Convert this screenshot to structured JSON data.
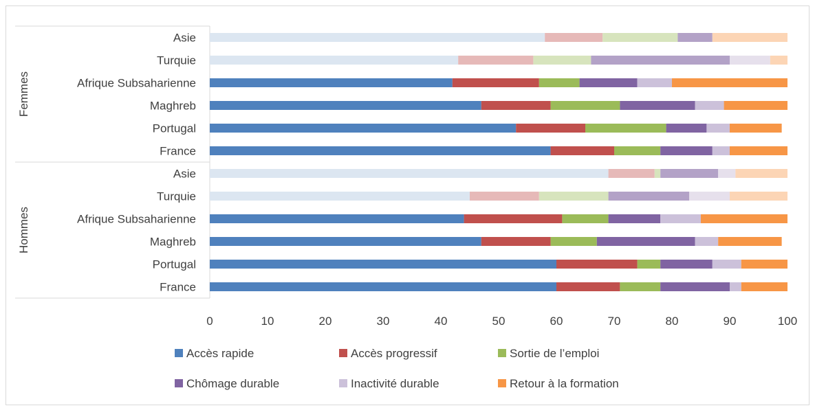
{
  "chart_data": {
    "type": "bar",
    "orientation": "horizontal",
    "stacked": true,
    "xlim": [
      0,
      100
    ],
    "xticks": [
      "0",
      "10",
      "20",
      "30",
      "40",
      "50",
      "60",
      "70",
      "80",
      "90",
      "100"
    ],
    "grid": false,
    "legend_position": "bottom",
    "groups": [
      {
        "name": "Femmes",
        "categories": [
          "Asie",
          "Turquie",
          "Afrique Subsaharienne",
          "Maghreb",
          "Portugal",
          "France"
        ],
        "faded": [
          true,
          true,
          false,
          false,
          false,
          false
        ]
      },
      {
        "name": "Hommes",
        "categories": [
          "Asie",
          "Turquie",
          "Afrique Subsaharienne",
          "Maghreb",
          "Portugal",
          "France"
        ],
        "faded": [
          true,
          true,
          false,
          false,
          false,
          false
        ]
      }
    ],
    "series": [
      {
        "name": "Accès rapide",
        "color": "#4f81bd",
        "faded_color": "#dce6f1",
        "values": [
          [
            58,
            43,
            42,
            47,
            53,
            59
          ],
          [
            69,
            45,
            44,
            47,
            60,
            60
          ]
        ]
      },
      {
        "name": "Accès progressif",
        "color": "#c0504d",
        "faded_color": "#e6b9b8",
        "values": [
          [
            10,
            13,
            15,
            12,
            12,
            11
          ],
          [
            8,
            12,
            17,
            12,
            14,
            11
          ]
        ]
      },
      {
        "name": "Sortie de l’emploi",
        "color": "#9bbb59",
        "faded_color": "#d7e4bd",
        "values": [
          [
            13,
            10,
            7,
            12,
            14,
            8
          ],
          [
            1,
            12,
            8,
            8,
            4,
            7
          ]
        ]
      },
      {
        "name": "Chômage durable",
        "color": "#8064a2",
        "faded_color": "#b3a2c7",
        "values": [
          [
            6,
            24,
            10,
            13,
            7,
            9
          ],
          [
            10,
            14,
            9,
            17,
            9,
            12
          ]
        ]
      },
      {
        "name": "Inactivité durable",
        "color": "#ccc1da",
        "faded_color": "#e6e0ec",
        "values": [
          [
            0,
            7,
            6,
            5,
            4,
            3
          ],
          [
            3,
            7,
            7,
            4,
            5,
            2
          ]
        ]
      },
      {
        "name": "Retour à la formation",
        "color": "#f79646",
        "faded_color": "#fcd5b5",
        "values": [
          [
            13,
            3,
            20,
            11,
            9,
            10
          ],
          [
            9,
            10,
            15,
            11,
            8,
            8
          ]
        ]
      }
    ]
  }
}
